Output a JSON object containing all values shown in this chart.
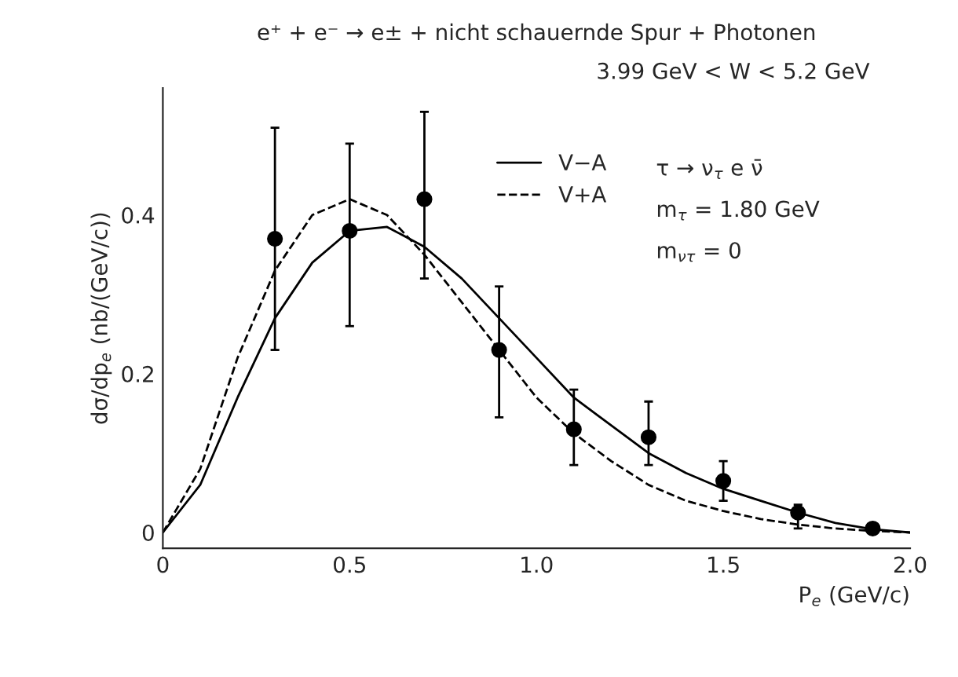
{
  "chart_data": {
    "type": "scatter",
    "title": "e⁺ + e⁻ → e± + nicht schauernde Spur + Photonen",
    "xlabel": "P$_{e}$ (GeV/c)",
    "ylabel": "dσ/dp$_{e}$ (nb/(GeV/c))",
    "annotations": [
      "3.99 GeV < W < 5.2 GeV",
      "τ → ν$_{τ}$ e ν̄",
      "m$_{τ}$ = 1.80 GeV",
      "m$_{ντ}$ = 0"
    ],
    "series": [
      {
        "marker": "circle",
        "color": "#000000",
        "x": [
          0.3,
          0.5,
          0.7,
          0.9,
          1.1,
          1.3,
          1.5,
          1.7,
          1.9
        ],
        "values": [
          0.37,
          0.38,
          0.42,
          0.23,
          0.13,
          0.12,
          0.065,
          0.025,
          0.005
        ],
        "errors": [
          [
            0.23,
            0.51
          ],
          [
            0.26,
            0.49
          ],
          [
            0.32,
            0.53
          ],
          [
            0.145,
            0.31
          ],
          [
            0.085,
            0.18
          ],
          [
            0.085,
            0.165
          ],
          [
            0.04,
            0.09
          ],
          [
            0.005,
            0.035
          ],
          [
            0.0,
            0.01
          ]
        ]
      },
      {
        "type": "line",
        "name": "V−A",
        "color": "#000000",
        "line_style": "solid",
        "x": [
          0,
          0.1,
          0.2,
          0.3,
          0.4,
          0.5,
          0.6,
          0.7,
          0.8,
          0.9,
          1.0,
          1.1,
          1.2,
          1.3,
          1.4,
          1.5,
          1.6,
          1.7,
          1.8,
          1.9,
          2.0
        ],
        "values": [
          0,
          0.06,
          0.17,
          0.27,
          0.34,
          0.38,
          0.385,
          0.36,
          0.32,
          0.27,
          0.22,
          0.17,
          0.135,
          0.1,
          0.075,
          0.055,
          0.04,
          0.025,
          0.012,
          0.004,
          0
        ]
      },
      {
        "type": "line",
        "name": "V+A",
        "color": "#000000",
        "line_style": "dashed",
        "x": [
          0,
          0.1,
          0.2,
          0.3,
          0.4,
          0.5,
          0.6,
          0.7,
          0.8,
          0.9,
          1.0,
          1.1,
          1.2,
          1.3,
          1.4,
          1.5,
          1.6,
          1.7,
          1.8,
          1.9,
          2.0
        ],
        "values": [
          0,
          0.08,
          0.22,
          0.33,
          0.4,
          0.42,
          0.4,
          0.35,
          0.29,
          0.23,
          0.17,
          0.125,
          0.09,
          0.06,
          0.04,
          0.027,
          0.017,
          0.01,
          0.005,
          0.002,
          0
        ]
      }
    ],
    "xlim": [
      0,
      2.0
    ],
    "ylim": [
      -0.02,
      0.56
    ],
    "xticks": [
      0,
      0.5,
      {
        "value": 1.0,
        "label": "1.0"
      },
      1.5,
      {
        "value": 2.0,
        "label": "2.0"
      }
    ],
    "yticks": [
      0,
      0.2,
      0.4
    ],
    "grid": false,
    "legend": "top right"
  }
}
